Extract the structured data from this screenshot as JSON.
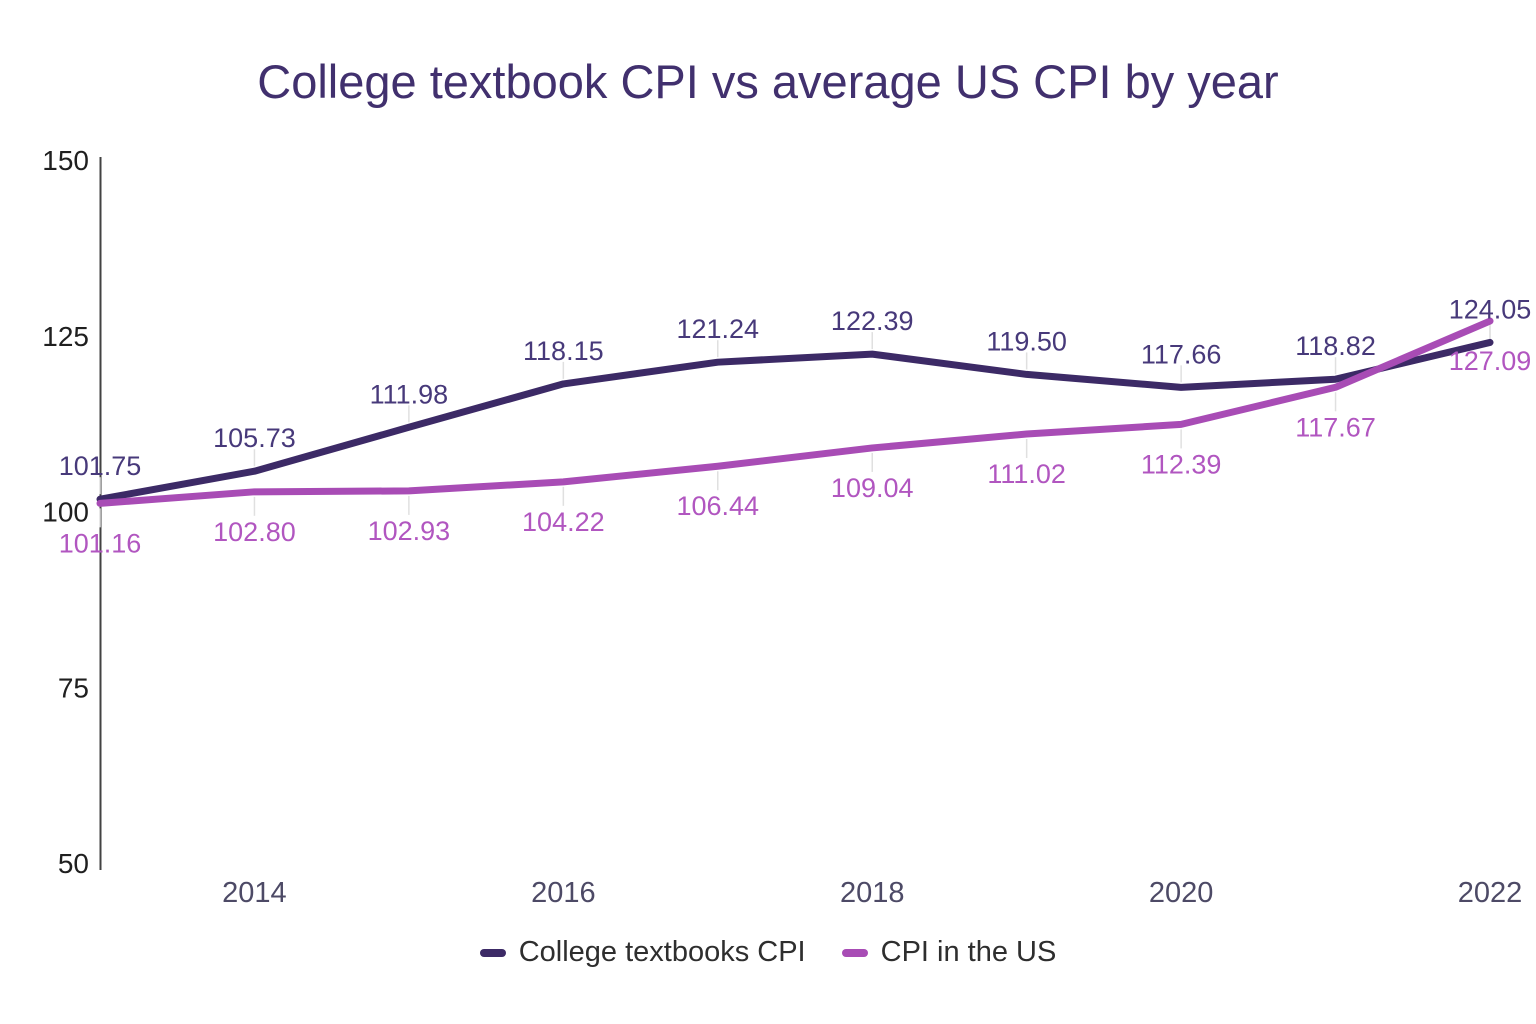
{
  "title": "College textbook CPI vs average US CPI by year",
  "title_color": "#41306e",
  "chart_data": {
    "type": "line",
    "title": "College textbook CPI vs average US CPI by year",
    "xlabel": "",
    "ylabel": "",
    "x": [
      2013,
      2014,
      2015,
      2016,
      2017,
      2018,
      2019,
      2020,
      2021,
      2022
    ],
    "x_tick_labels": [
      "2014",
      "2016",
      "2018",
      "2020",
      "2022"
    ],
    "x_tick_years": [
      2014,
      2016,
      2018,
      2020,
      2022
    ],
    "y_ticks": [
      "150",
      "125",
      "100",
      "75",
      "50"
    ],
    "y_tick_values": [
      150,
      125,
      100,
      75,
      50
    ],
    "ylim": [
      50,
      150
    ],
    "grid": false,
    "legend_position": "bottom",
    "series": [
      {
        "key": "college-textbooks-cpi",
        "name": "College textbooks CPI",
        "color": "#3c2a66",
        "label_color": "#47397a",
        "label_position": "above",
        "values": [
          101.75,
          105.73,
          111.98,
          118.15,
          121.24,
          122.39,
          119.5,
          117.66,
          118.82,
          124.05
        ],
        "labels": [
          "101.75",
          "105.73",
          "111.98",
          "118.15",
          "121.24",
          "122.39",
          "119.50",
          "117.66",
          "118.82",
          "124.05"
        ]
      },
      {
        "key": "us-cpi",
        "name": "CPI in the US",
        "color": "#a84cb5",
        "label_color": "#b156c0",
        "label_position": "below",
        "values": [
          101.16,
          102.8,
          102.93,
          104.22,
          106.44,
          109.04,
          111.02,
          112.39,
          117.67,
          127.09
        ],
        "labels": [
          "101.16",
          "102.80",
          "102.93",
          "104.22",
          "106.44",
          "109.04",
          "111.02",
          "112.39",
          "117.67",
          "127.09"
        ]
      }
    ],
    "axis": {
      "line_color": "#424242",
      "y_tick_color": "#1f1f1f",
      "x_tick_color": "#4d4a66",
      "stem_color": "#e0e0e0"
    }
  }
}
